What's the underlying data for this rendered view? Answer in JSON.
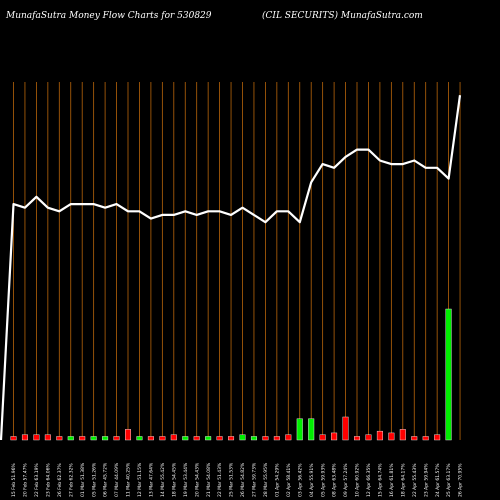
{
  "header": {
    "left_title": "MunafaSutra  Money Flow  Charts for 530829",
    "right_title": "(CIL  SECURITS) MunafaSutra.com"
  },
  "colors": {
    "background": "#000000",
    "grid": "#b8650a",
    "line": "#ffffff",
    "inflow": "#00ee00",
    "outflow": "#ff0000"
  },
  "chart_data": {
    "type": "bar",
    "title": "MunafaSutra  Money Flow  Charts for 530829",
    "xlabel": "",
    "ylabel": "",
    "grid": true,
    "categories": [
      "15 Feb 51.96%",
      "20 Feb 57.47%",
      "22 Feb 63.19%",
      "23 Feb 64.06%",
      "26 Feb 62.37%",
      "27 Feb 62.32%",
      "01 Mar 51.38%",
      "05 Mar 51.26%",
      "06 Mar 45.72%",
      "07 Mar 44.09%",
      "11 Mar 40.25%",
      "12 Mar 51.15%",
      "13 Mar 47.64%",
      "14 Mar 55.42%",
      "18 Mar 54.45%",
      "19 Mar 53.44%",
      "20 Mar 54.43%",
      "21 Mar 54.08%",
      "22 Mar 51.43%",
      "25 Mar 51.53%",
      "26 Mar 54.82%",
      "27 Mar 59.73%",
      "28 Mar 55.95%",
      "01 Apr 54.29%",
      "02 Apr 58.41%",
      "03 Apr 56.42%",
      "04 Apr 55.91%",
      "05 Apr 59.93%",
      "08 Apr 63.48%",
      "09 Apr 57.24%",
      "10 Apr 60.92%",
      "12 Apr 66.35%",
      "15 Apr 64.74%",
      "16 Apr 61.81%",
      "18 Apr 64.17%",
      "22 Apr 55.43%",
      "23 Apr 59.94%",
      "24 Apr 61.57%",
      "25 Apr 63.17%",
      "26 Apr 70.95%"
    ],
    "series": [
      {
        "type": "bar",
        "values": [
          2,
          3,
          3,
          3,
          2,
          2,
          2,
          2,
          2,
          2,
          6,
          2,
          2,
          2,
          3,
          2,
          2,
          2,
          2,
          2,
          3,
          2,
          2,
          2,
          3,
          12,
          12,
          3,
          4,
          13,
          2,
          3,
          5,
          4,
          6,
          2,
          2,
          3,
          74,
          0
        ],
        "direction": [
          "out",
          "out",
          "out",
          "out",
          "out",
          "in",
          "out",
          "in",
          "in",
          "out",
          "out",
          "in",
          "out",
          "out",
          "out",
          "in",
          "out",
          "in",
          "out",
          "out",
          "in",
          "in",
          "out",
          "out",
          "out",
          "in",
          "in",
          "out",
          "out",
          "out",
          "out",
          "out",
          "out",
          "out",
          "out",
          "out",
          "out",
          "out",
          "in",
          "in"
        ]
      },
      {
        "type": "line",
        "values": [
          65,
          64,
          67,
          64,
          63,
          65,
          65,
          65,
          64,
          65,
          63,
          63,
          61,
          62,
          62,
          63,
          62,
          63,
          63,
          62,
          64,
          62,
          60,
          63,
          63,
          60,
          71,
          76,
          75,
          78,
          80,
          80,
          77,
          76,
          76,
          77,
          75,
          75,
          72,
          95
        ]
      }
    ]
  }
}
